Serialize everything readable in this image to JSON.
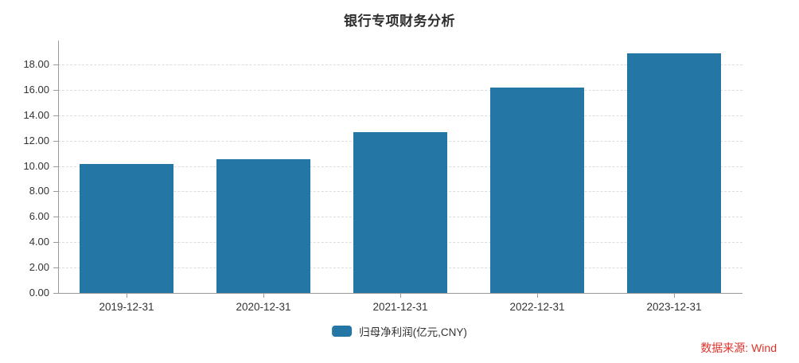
{
  "title": "银行专项财务分析",
  "chart_data": {
    "type": "bar",
    "categories": [
      "2019-12-31",
      "2020-12-31",
      "2021-12-31",
      "2022-12-31",
      "2023-12-31"
    ],
    "series": [
      {
        "name": "归母净利润(亿元,CNY)",
        "values": [
          10.15,
          10.55,
          12.7,
          16.2,
          18.9
        ],
        "color": "#2476a5"
      }
    ],
    "title": "银行专项财务分析",
    "xlabel": "",
    "ylabel": "",
    "ylim": [
      0,
      18
    ],
    "ytick_step": 2,
    "ytick_labels": [
      "0.00",
      "2.00",
      "4.00",
      "6.00",
      "8.00",
      "10.00",
      "12.00",
      "14.00",
      "16.00",
      "18.00"
    ],
    "grid": "horizontal-dashed",
    "legend_position": "bottom-center"
  },
  "legend": {
    "label": "归母净利润(亿元,CNY)",
    "swatch_color": "#2476a5"
  },
  "source": {
    "label": "数据来源: Wind",
    "color": "#e03228"
  },
  "colors": {
    "bar": "#2476a5",
    "axis": "#999999",
    "grid": "#dcdcdc",
    "text": "#333333",
    "title": "#2e2e2e"
  }
}
